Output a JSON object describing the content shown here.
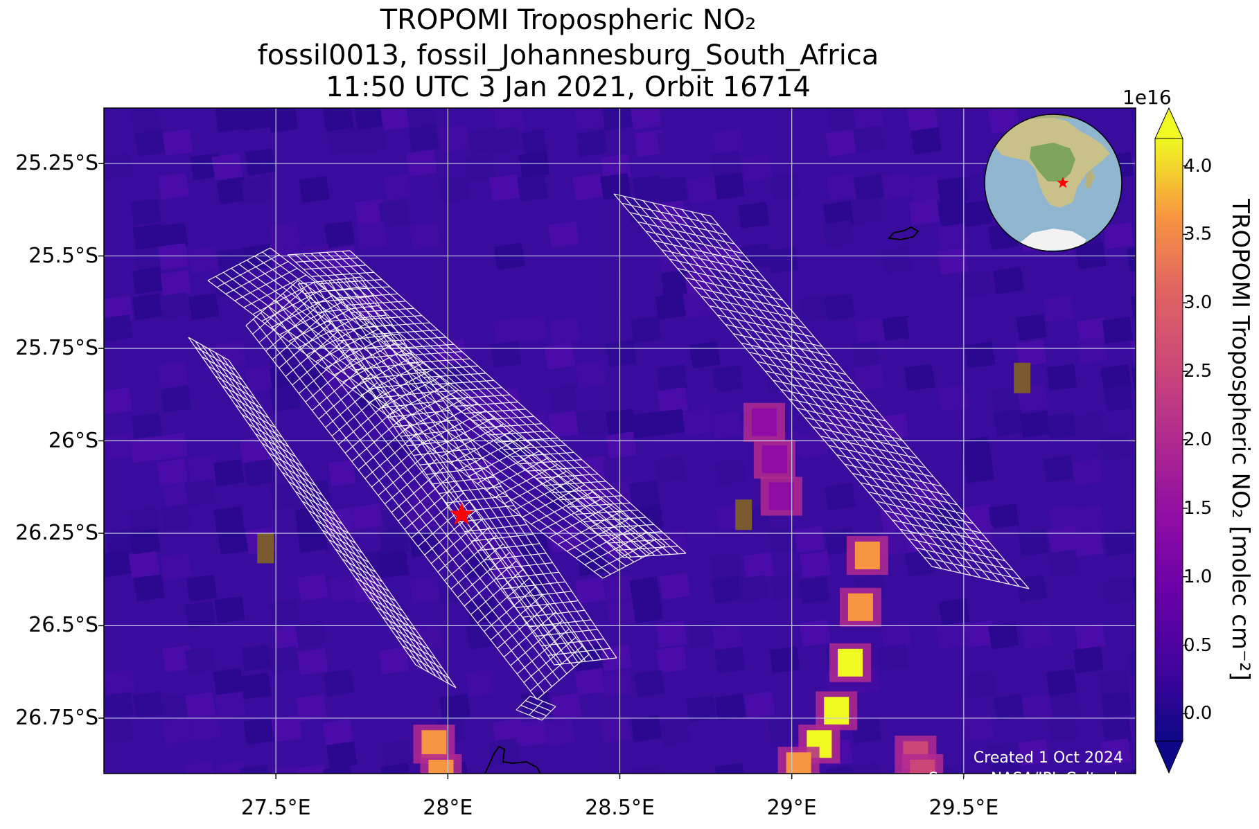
{
  "title": {
    "line1": "TROPOMI Tropospheric NO₂",
    "line2": "fossil0013, fossil_Johannesburg_South_Africa",
    "line3": "11:50 UTC 3 Jan 2021, Orbit 16714"
  },
  "map": {
    "lon_range": [
      27.0,
      30.0
    ],
    "lat_range": [
      -26.9,
      -25.1
    ],
    "lat_ticks": [
      {
        "value": -25.25,
        "label": "25.25°S"
      },
      {
        "value": -25.5,
        "label": "25.5°S"
      },
      {
        "value": -25.75,
        "label": "25.75°S"
      },
      {
        "value": -26.0,
        "label": "26°S"
      },
      {
        "value": -26.25,
        "label": "26.25°S"
      },
      {
        "value": -26.5,
        "label": "26.5°S"
      },
      {
        "value": -26.75,
        "label": "26.75°S"
      }
    ],
    "lon_ticks": [
      {
        "value": 27.5,
        "label": "27.5°E"
      },
      {
        "value": 28.0,
        "label": "28°E"
      },
      {
        "value": 28.5,
        "label": "28.5°E"
      },
      {
        "value": 29.0,
        "label": "29°E"
      },
      {
        "value": 29.5,
        "label": "29.5°E"
      }
    ],
    "gridlines": true,
    "background_color": "#3a0c9e",
    "target_marker": {
      "lon": 28.04,
      "lat": -26.2,
      "symbol": "star",
      "color": "#ff0000"
    },
    "plumes": [
      {
        "name": "east-plume",
        "points": [
          [
            29.22,
            -26.31
          ],
          [
            29.2,
            -26.45
          ],
          [
            29.17,
            -26.6
          ],
          [
            29.13,
            -26.73
          ],
          [
            29.08,
            -26.82
          ],
          [
            29.02,
            -26.88
          ]
        ],
        "peak": 4.0
      },
      {
        "name": "south-plume",
        "points": [
          [
            27.96,
            -26.82
          ],
          [
            27.98,
            -26.9
          ]
        ],
        "peak": 2.5
      },
      {
        "name": "southeast-plume",
        "points": [
          [
            29.36,
            -26.85
          ],
          [
            29.38,
            -26.9
          ]
        ],
        "peak": 2.0
      },
      {
        "name": "central-plume",
        "points": [
          [
            28.92,
            -25.95
          ],
          [
            28.95,
            -26.05
          ],
          [
            28.97,
            -26.15
          ]
        ],
        "peak": 1.2
      }
    ],
    "land_patches": [
      {
        "lon": 29.67,
        "lat": -25.83
      },
      {
        "lon": 28.86,
        "lat": -26.2
      },
      {
        "lon": 27.47,
        "lat": -26.29
      }
    ]
  },
  "colorbar": {
    "label": "TROPOMI Tropospheric NO₂ [molec cm⁻²]",
    "exponent": "1e16",
    "min": -0.2,
    "max": 4.2,
    "ticks": [
      "0.0",
      "0.5",
      "1.0",
      "1.5",
      "2.0",
      "2.5",
      "3.0",
      "3.5",
      "4.0"
    ],
    "colormap": "plasma"
  },
  "inset_globe": {
    "marker_color": "#ff0000"
  },
  "credits": {
    "created": "Created 1 Oct 2024",
    "source": "Source: NASA/JPL-Caltech"
  }
}
